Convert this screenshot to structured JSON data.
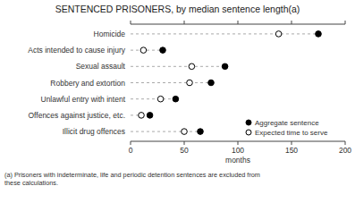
{
  "chart_data": {
    "type": "dot",
    "title": "SENTENCED PRISONERS, by median sentence length(a)",
    "orientation": "horizontal",
    "categories": [
      "Illicit drug offences",
      "Offences against justice, etc.",
      "Unlawful entry with intent",
      "Robbery and extortion",
      "Sexual assault",
      "Acts intended to cause injury",
      "Homicide"
    ],
    "series": [
      {
        "name": "Aggregate sentence",
        "color": "black",
        "marker": "circle",
        "values": [
          65,
          18,
          42,
          75,
          88,
          30,
          175
        ]
      },
      {
        "name": "Expected time to serve",
        "color": "black",
        "marker": "open-circle",
        "values": [
          50,
          10,
          28,
          55,
          57,
          12,
          138
        ]
      }
    ],
    "color": "#aaaaaa",
    "line_style": "dashed",
    "xlabel": "months",
    "xlim": [
      0,
      200
    ],
    "xticks": [
      0,
      50,
      100,
      150,
      200
    ],
    "legend": "lower right",
    "grid": false,
    "footnote": "(a) Prisoners with indeterminate, life and periodic detention sentences are excluded from\nthese calculations."
  }
}
